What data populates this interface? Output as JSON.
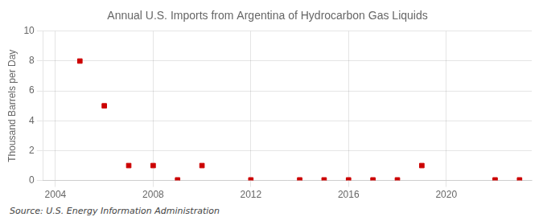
{
  "chart_data": {
    "type": "scatter",
    "title": "Annual U.S. Imports from Argentina of Hydrocarbon Gas Liquids",
    "ylabel": "Thousand Barrels per Day",
    "annotation": "Source: U.S. Energy Information Administration",
    "x": [
      2005,
      2006,
      2007,
      2008,
      2009,
      2010,
      2012,
      2014,
      2015,
      2016,
      2017,
      2018,
      2019,
      2022,
      2023
    ],
    "values": [
      8.0,
      5.0,
      1.0,
      1.0,
      0.04,
      1.0,
      0.04,
      0.04,
      0.04,
      0.04,
      0.04,
      0.04,
      1.0,
      0.04,
      0.04
    ],
    "color": "#cc0000",
    "marker": "square",
    "xlim": [
      2003.5,
      2023.5
    ],
    "xticks": [
      2004,
      2008,
      2012,
      2016,
      2020
    ],
    "ylim": [
      0,
      10
    ],
    "yticks": [
      0,
      2,
      4,
      6,
      8,
      10
    ],
    "grid": true
  }
}
